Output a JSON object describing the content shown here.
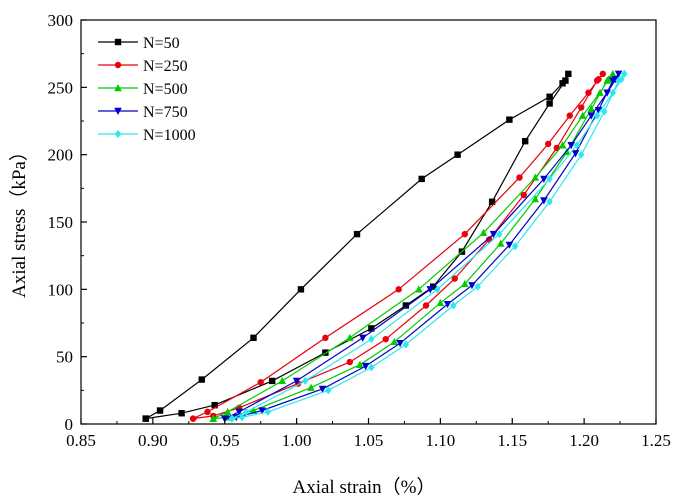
{
  "chart_data": {
    "type": "line",
    "xlabel": "Axial strain（%）",
    "ylabel": "Axial stress（kPa）",
    "xlim": [
      0.85,
      1.25
    ],
    "ylim": [
      0,
      300
    ],
    "x_ticks": [
      0.85,
      0.9,
      0.95,
      1.0,
      1.05,
      1.1,
      1.15,
      1.2,
      1.25
    ],
    "y_ticks": [
      0,
      50,
      100,
      150,
      200,
      250,
      300
    ],
    "x_tick_labels": [
      "0.85",
      "0.90",
      "0.95",
      "1.00",
      "1.05",
      "1.10",
      "1.15",
      "1.20",
      "1.25"
    ],
    "y_tick_labels": [
      "0",
      "50",
      "100",
      "150",
      "200",
      "250",
      "300"
    ],
    "grid": false,
    "legend_position": "top-left",
    "series": [
      {
        "name": "N=50",
        "color": "#000000",
        "marker": "square",
        "points": [
          [
            0.895,
            4
          ],
          [
            0.905,
            10
          ],
          [
            0.934,
            33
          ],
          [
            0.97,
            64
          ],
          [
            1.003,
            100
          ],
          [
            1.042,
            141
          ],
          [
            1.087,
            182
          ],
          [
            1.112,
            200
          ],
          [
            1.148,
            226
          ],
          [
            1.176,
            243
          ],
          [
            1.185,
            253
          ],
          [
            1.189,
            260
          ],
          [
            1.187,
            255
          ],
          [
            1.176,
            238
          ],
          [
            1.159,
            210
          ],
          [
            1.136,
            165
          ],
          [
            1.115,
            128
          ],
          [
            1.095,
            102
          ],
          [
            1.076,
            88
          ],
          [
            1.052,
            71
          ],
          [
            1.02,
            53
          ],
          [
            0.983,
            32
          ],
          [
            0.943,
            14
          ],
          [
            0.92,
            8
          ],
          [
            0.895,
            4
          ]
        ]
      },
      {
        "name": "N=250",
        "color": "#e8000b",
        "marker": "circle",
        "points": [
          [
            0.928,
            4
          ],
          [
            0.938,
            9
          ],
          [
            0.975,
            31
          ],
          [
            1.02,
            64
          ],
          [
            1.071,
            100
          ],
          [
            1.117,
            141
          ],
          [
            1.155,
            183
          ],
          [
            1.175,
            208
          ],
          [
            1.19,
            229
          ],
          [
            1.203,
            246
          ],
          [
            1.21,
            256
          ],
          [
            1.213,
            260
          ],
          [
            1.209,
            255
          ],
          [
            1.198,
            235
          ],
          [
            1.181,
            205
          ],
          [
            1.158,
            170
          ],
          [
            1.134,
            137
          ],
          [
            1.11,
            108
          ],
          [
            1.09,
            88
          ],
          [
            1.062,
            63
          ],
          [
            1.037,
            46
          ],
          [
            1.001,
            30
          ],
          [
            0.96,
            12
          ],
          [
            0.942,
            6
          ],
          [
            0.928,
            4
          ]
        ]
      },
      {
        "name": "N=500",
        "color": "#00cc00",
        "marker": "triangle-up",
        "points": [
          [
            0.942,
            4
          ],
          [
            0.952,
            9
          ],
          [
            0.99,
            32
          ],
          [
            1.037,
            64
          ],
          [
            1.085,
            100
          ],
          [
            1.13,
            142
          ],
          [
            1.166,
            183
          ],
          [
            1.185,
            207
          ],
          [
            1.199,
            229
          ],
          [
            1.211,
            246
          ],
          [
            1.217,
            256
          ],
          [
            1.22,
            260
          ],
          [
            1.216,
            255
          ],
          [
            1.205,
            234
          ],
          [
            1.188,
            202
          ],
          [
            1.166,
            167
          ],
          [
            1.142,
            134
          ],
          [
            1.117,
            104
          ],
          [
            1.1,
            90
          ],
          [
            1.068,
            61
          ],
          [
            1.044,
            44
          ],
          [
            1.01,
            27
          ],
          [
            0.97,
            10
          ],
          [
            0.952,
            5
          ],
          [
            0.942,
            4
          ]
        ]
      },
      {
        "name": "N=750",
        "color": "#0000cd",
        "marker": "triangle-down",
        "points": [
          [
            0.95,
            4
          ],
          [
            0.96,
            9
          ],
          [
            1.0,
            32
          ],
          [
            1.046,
            64
          ],
          [
            1.093,
            100
          ],
          [
            1.137,
            141
          ],
          [
            1.172,
            182
          ],
          [
            1.191,
            207
          ],
          [
            1.205,
            229
          ],
          [
            1.216,
            246
          ],
          [
            1.222,
            256
          ],
          [
            1.224,
            260
          ],
          [
            1.22,
            255
          ],
          [
            1.21,
            233
          ],
          [
            1.194,
            201
          ],
          [
            1.172,
            166
          ],
          [
            1.148,
            133
          ],
          [
            1.122,
            103
          ],
          [
            1.105,
            89
          ],
          [
            1.072,
            60
          ],
          [
            1.048,
            43
          ],
          [
            1.018,
            26
          ],
          [
            0.976,
            10
          ],
          [
            0.958,
            5
          ],
          [
            0.95,
            4
          ]
        ]
      },
      {
        "name": "N=1000",
        "color": "#2ee6ee",
        "marker": "diamond",
        "points": [
          [
            0.955,
            4
          ],
          [
            0.965,
            9
          ],
          [
            1.006,
            32
          ],
          [
            1.052,
            63
          ],
          [
            1.098,
            100
          ],
          [
            1.141,
            141
          ],
          [
            1.176,
            182
          ],
          [
            1.195,
            207
          ],
          [
            1.209,
            229
          ],
          [
            1.22,
            246
          ],
          [
            1.226,
            256
          ],
          [
            1.228,
            260
          ],
          [
            1.224,
            255
          ],
          [
            1.214,
            232
          ],
          [
            1.198,
            200
          ],
          [
            1.176,
            165
          ],
          [
            1.152,
            132
          ],
          [
            1.126,
            102
          ],
          [
            1.109,
            88
          ],
          [
            1.076,
            59
          ],
          [
            1.052,
            42
          ],
          [
            1.022,
            25
          ],
          [
            0.98,
            9
          ],
          [
            0.962,
            5
          ],
          [
            0.955,
            4
          ]
        ]
      }
    ]
  }
}
